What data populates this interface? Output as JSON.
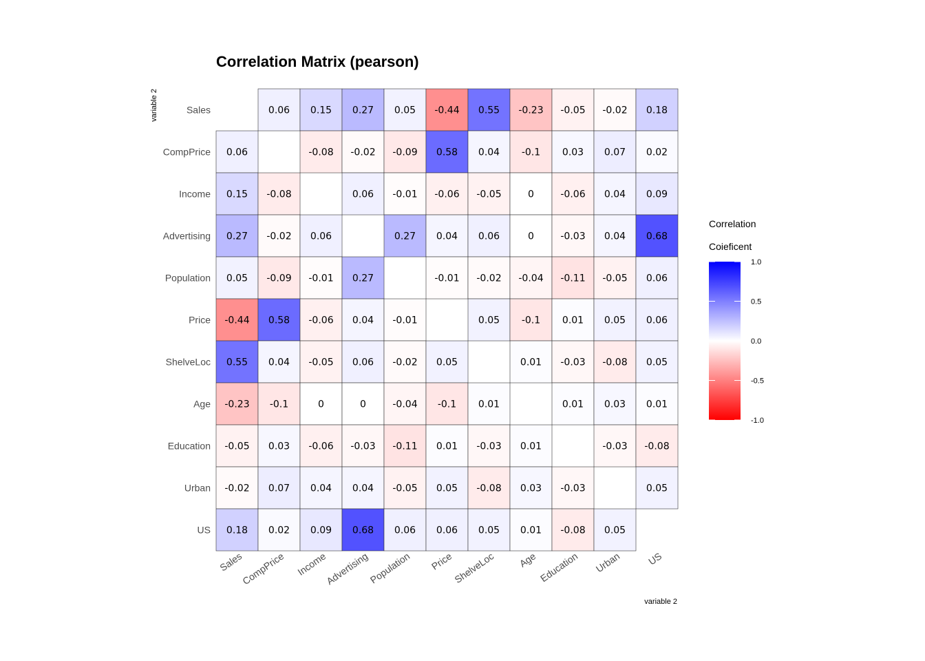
{
  "chart_data": {
    "type": "heatmap",
    "title": "Correlation Matrix (pearson)",
    "xlabel": "variable 2",
    "ylabel": "variable 2",
    "variables": [
      "Sales",
      "CompPrice",
      "Income",
      "Advertising",
      "Population",
      "Price",
      "ShelveLoc",
      "Age",
      "Education",
      "Urban",
      "US"
    ],
    "matrix": [
      [
        null,
        0.06,
        0.15,
        0.27,
        0.05,
        -0.44,
        0.55,
        -0.23,
        -0.05,
        -0.02,
        0.18
      ],
      [
        0.06,
        null,
        -0.08,
        -0.02,
        -0.09,
        0.58,
        0.04,
        -0.1,
        0.03,
        0.07,
        0.02
      ],
      [
        0.15,
        -0.08,
        null,
        0.06,
        -0.01,
        -0.06,
        -0.05,
        0,
        -0.06,
        0.04,
        0.09
      ],
      [
        0.27,
        -0.02,
        0.06,
        null,
        0.27,
        0.04,
        0.06,
        0,
        -0.03,
        0.04,
        0.68
      ],
      [
        0.05,
        -0.09,
        -0.01,
        0.27,
        null,
        -0.01,
        -0.02,
        -0.04,
        -0.11,
        -0.05,
        0.06
      ],
      [
        -0.44,
        0.58,
        -0.06,
        0.04,
        -0.01,
        null,
        0.05,
        -0.1,
        0.01,
        0.05,
        0.06
      ],
      [
        0.55,
        0.04,
        -0.05,
        0.06,
        -0.02,
        0.05,
        null,
        0.01,
        -0.03,
        -0.08,
        0.05
      ],
      [
        -0.23,
        -0.1,
        0,
        0,
        -0.04,
        -0.1,
        0.01,
        null,
        0.01,
        0.03,
        0.01
      ],
      [
        -0.05,
        0.03,
        -0.06,
        -0.03,
        -0.11,
        0.01,
        -0.03,
        0.01,
        null,
        -0.03,
        -0.08
      ],
      [
        -0.02,
        0.07,
        0.04,
        0.04,
        -0.05,
        0.05,
        -0.08,
        0.03,
        -0.03,
        null,
        0.05
      ],
      [
        0.18,
        0.02,
        0.09,
        0.68,
        0.06,
        0.06,
        0.05,
        0.01,
        -0.08,
        0.05,
        null
      ]
    ],
    "color_scale": {
      "low": "#ff0000",
      "mid": "#ffffff",
      "high": "#0000ff",
      "range": [
        -1,
        1
      ]
    },
    "legend": {
      "title_line1": "Correlation",
      "title_line2": "Coieficent",
      "ticks": [
        "1.0",
        "0.5",
        "0.0",
        "-0.5",
        "-1.0"
      ],
      "placement": "right"
    }
  }
}
